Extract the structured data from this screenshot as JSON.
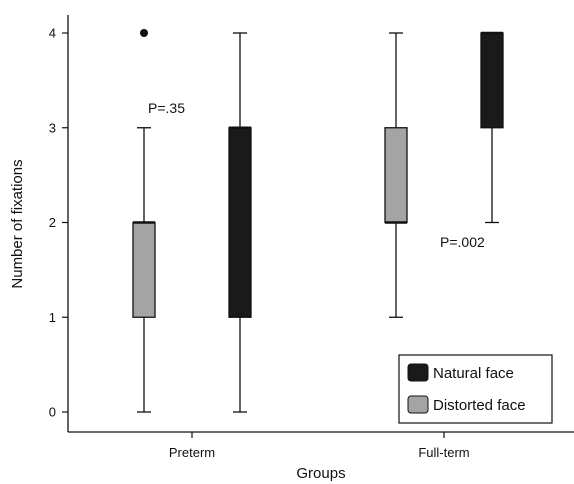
{
  "chart_data": {
    "type": "box",
    "xlabel": "Groups",
    "ylabel": "Number of fixations",
    "ylim": [
      0,
      4
    ],
    "yticks": [
      0,
      1,
      2,
      3,
      4
    ],
    "categories": [
      "Preterm",
      "Full-term"
    ],
    "series": [
      {
        "name": "Distorted face",
        "color": "#a4a4a4",
        "boxes": [
          {
            "min": 0,
            "q1": 1,
            "median": 2,
            "q3": 2,
            "max": 3,
            "outliers": [
              4
            ]
          },
          {
            "min": 1,
            "q1": 2,
            "median": 2,
            "q3": 3,
            "max": 4,
            "outliers": []
          }
        ]
      },
      {
        "name": "Natural face",
        "color": "#1a1a1a",
        "boxes": [
          {
            "min": 0,
            "q1": 1,
            "median": 3,
            "q3": 3,
            "max": 4,
            "outliers": []
          },
          {
            "min": 2,
            "q1": 3,
            "median": 4,
            "q3": 4,
            "max": 4,
            "outliers": []
          }
        ]
      }
    ],
    "annotations": [
      {
        "text": "P=.35",
        "category": "Preterm"
      },
      {
        "text": "P=.002",
        "category": "Full-term"
      }
    ],
    "legend": {
      "position": "bottom-right",
      "entries": [
        "Natural face",
        "Distorted face"
      ]
    },
    "grid": false
  }
}
